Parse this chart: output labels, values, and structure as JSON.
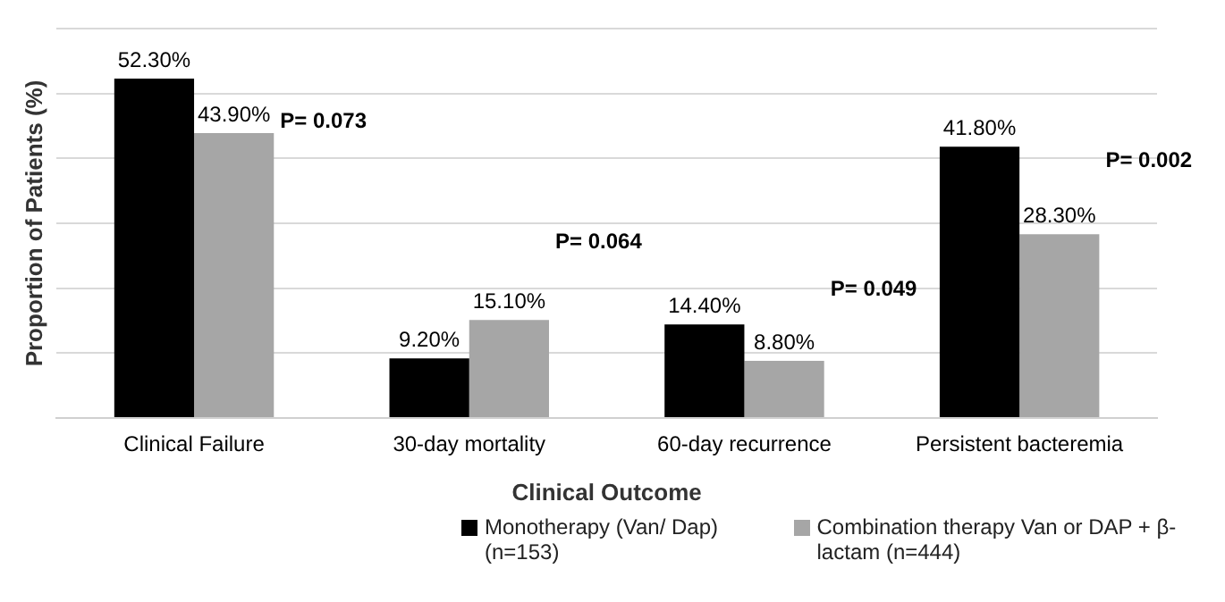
{
  "chart_data": {
    "type": "bar",
    "xlabel": "Clinical Outcome",
    "ylabel": "Proportion of Patients (%)",
    "categories": [
      "Clinical Failure",
      "30-day mortality",
      "60-day recurrence",
      "Persistent bacteremia"
    ],
    "series": [
      {
        "name": "Monotherapy (Van/ Dap) (n=153)",
        "color": "#000000",
        "values": [
          52.3,
          9.2,
          14.4,
          41.8
        ],
        "value_labels": [
          "52.30%",
          "9.20%",
          "14.40%",
          "41.80%"
        ]
      },
      {
        "name": "Combination therapy Van or DAP + β- lactam (n=444)",
        "color": "#a6a6a6",
        "values": [
          43.9,
          15.1,
          8.8,
          28.3
        ],
        "value_labels": [
          "43.90%",
          "15.10%",
          "8.80%",
          "28.30%"
        ]
      }
    ],
    "ylim": [
      0,
      60
    ],
    "yticks": [
      {
        "value": 0,
        "label": null
      },
      {
        "value": 10,
        "label": null
      },
      {
        "value": 20,
        "label": null
      },
      {
        "value": 30,
        "label": null
      },
      {
        "value": 40,
        "label": null
      },
      {
        "value": 50,
        "label": null
      },
      {
        "value": 60,
        "label": null
      }
    ],
    "tick_labels": "x",
    "grid": "y",
    "legend": "bottom",
    "annotations": [
      "P= 0.073",
      "P= 0.064",
      "P= 0.049",
      "P= 0.002"
    ]
  }
}
